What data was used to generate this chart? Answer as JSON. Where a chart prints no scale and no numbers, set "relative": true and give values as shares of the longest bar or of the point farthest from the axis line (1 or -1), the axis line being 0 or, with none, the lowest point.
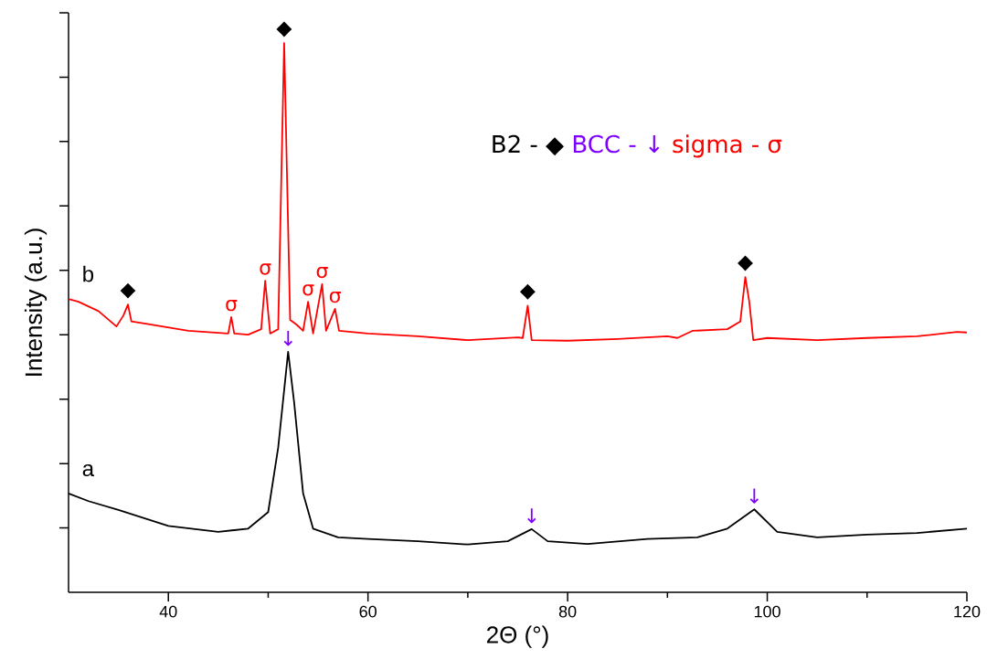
{
  "chart_data": {
    "type": "line",
    "relative": true,
    "xlabel": "2Θ (°)",
    "ylabel": "Intensity (a.u.)",
    "xlim": [
      30,
      120
    ],
    "xticks": [
      40,
      60,
      80,
      100,
      120
    ],
    "series": [
      {
        "color": "#ff0000",
        "x": [
          30,
          31,
          33,
          34.8,
          35.5,
          35.95,
          36.3,
          38,
          42,
          46,
          46.3,
          46.6,
          48,
          49.3,
          49.7,
          50.2,
          51.0,
          51.6,
          52.2,
          52.8,
          53.5,
          54.0,
          54.5,
          55.4,
          55.8,
          56.7,
          57.1,
          60,
          65,
          70,
          75,
          75.5,
          76.0,
          76.4,
          80,
          85,
          90,
          91,
          92.5,
          96,
          97.3,
          97.8,
          98.2,
          98.6,
          100,
          105,
          110,
          115,
          119,
          120
        ],
        "values": [
          0.534,
          0.529,
          0.512,
          0.484,
          0.504,
          0.524,
          0.493,
          0.488,
          0.476,
          0.471,
          0.501,
          0.471,
          0.469,
          0.479,
          0.567,
          0.471,
          0.479,
          1,
          0.496,
          0.488,
          0.476,
          0.529,
          0.471,
          0.561,
          0.476,
          0.516,
          0.476,
          0.471,
          0.466,
          0.459,
          0.464,
          0.463,
          0.522,
          0.459,
          0.458,
          0.461,
          0.466,
          0.463,
          0.476,
          0.479,
          0.493,
          0.574,
          0.529,
          0.459,
          0.463,
          0.459,
          0.463,
          0.466,
          0.474,
          0.473
        ]
      },
      {
        "color": "#000000",
        "x": [
          30,
          32,
          35,
          40,
          45,
          48,
          50,
          51,
          52.0,
          52.6,
          53.5,
          54.5,
          57,
          60,
          65,
          70,
          74,
          76.4,
          78,
          82,
          88,
          93,
          96,
          98.7,
          101,
          105,
          110,
          115,
          120
        ],
        "values": [
          0.18,
          0.166,
          0.15,
          0.121,
          0.11,
          0.116,
          0.146,
          0.263,
          0.438,
          0.346,
          0.18,
          0.116,
          0.1,
          0.097,
          0.093,
          0.087,
          0.093,
          0.115,
          0.093,
          0.088,
          0.097,
          0.1,
          0.116,
          0.151,
          0.11,
          0.1,
          0.105,
          0.108,
          0.116
        ]
      }
    ],
    "annotations": [
      "B2 - ◆",
      "BCC - ↓",
      "sigma - σ",
      {
        "text": "◆",
        "x": 35.95,
        "y": 0.524
      },
      {
        "text": "σ",
        "x": 46.3,
        "y": 0.501
      },
      {
        "text": "σ",
        "x": 49.7,
        "y": 0.567
      },
      {
        "text": "◆",
        "x": 51.6,
        "y": 1
      },
      {
        "text": "σ",
        "x": 54.0,
        "y": 0.529
      },
      {
        "text": "σ",
        "x": 55.4,
        "y": 0.561
      },
      {
        "text": "σ",
        "x": 56.7,
        "y": 0.516
      },
      {
        "text": "◆",
        "x": 76.0,
        "y": 0.522
      },
      {
        "text": "◆",
        "x": 97.8,
        "y": 0.574
      },
      {
        "text": "↓",
        "x": 52.0,
        "y": 0.438
      },
      {
        "text": "↓",
        "x": 76.4,
        "y": 0.115
      },
      {
        "text": "↓",
        "x": 98.7,
        "y": 0.151
      },
      {
        "text": "b",
        "x": 30,
        "y": 0.534
      },
      {
        "text": "a",
        "x": 30,
        "y": 0.18
      }
    ]
  }
}
